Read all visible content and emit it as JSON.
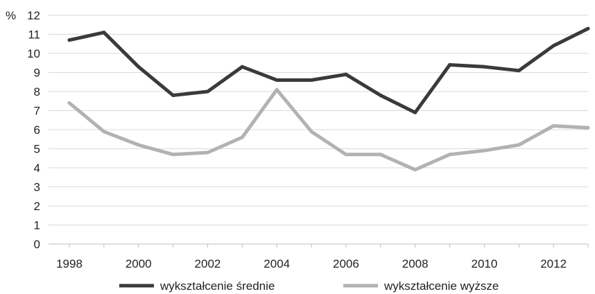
{
  "chart_data": {
    "type": "line",
    "ylabel": "%",
    "ylim": [
      0,
      12
    ],
    "yticks": [
      0,
      1,
      2,
      3,
      4,
      5,
      6,
      7,
      8,
      9,
      10,
      11,
      12
    ],
    "x": [
      1998,
      1999,
      2000,
      2001,
      2002,
      2003,
      2004,
      2005,
      2006,
      2007,
      2008,
      2009,
      2010,
      2011,
      2012,
      2013
    ],
    "xtick_labels": [
      "1998",
      "2000",
      "2002",
      "2004",
      "2006",
      "2008",
      "2010",
      "2012"
    ],
    "grid": "horizontal",
    "legend_position": "bottom",
    "series": [
      {
        "name": "wykształcenie średnie",
        "color": "#3a3a3a",
        "values": [
          10.7,
          11.1,
          9.3,
          7.8,
          8.0,
          9.3,
          8.6,
          8.6,
          8.9,
          7.8,
          6.9,
          9.4,
          9.3,
          9.1,
          10.4,
          11.3
        ]
      },
      {
        "name": "wykształcenie wyższe",
        "color": "#b2b2b2",
        "values": [
          7.4,
          5.9,
          5.2,
          4.7,
          4.8,
          5.6,
          8.1,
          5.9,
          4.7,
          4.7,
          3.9,
          4.7,
          4.9,
          5.2,
          6.2,
          6.1
        ]
      }
    ]
  }
}
